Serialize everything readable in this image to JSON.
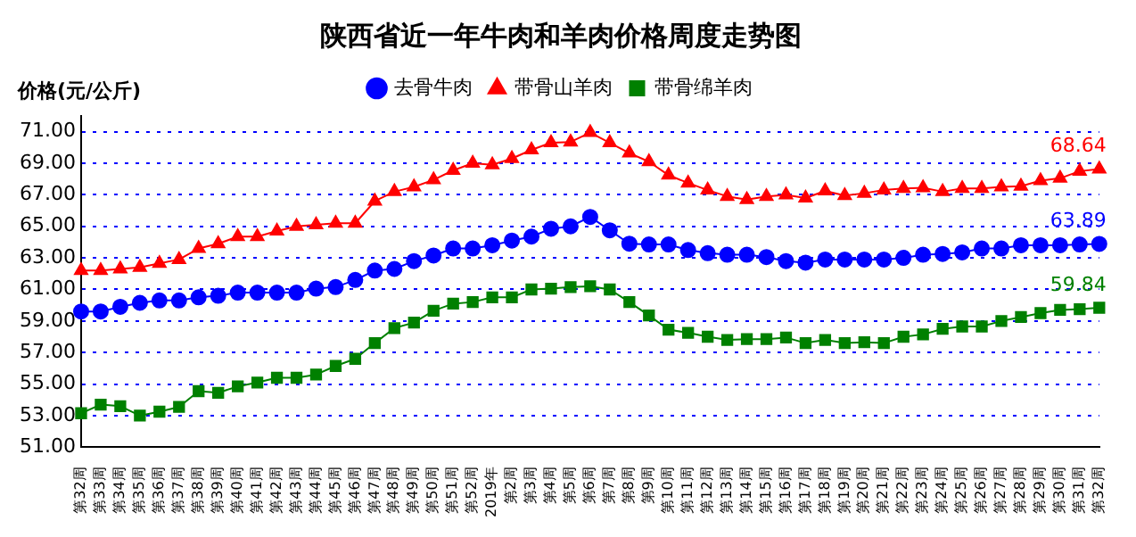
{
  "chart_data": {
    "type": "line",
    "title": "陕西省近一年牛肉和羊肉价格周度走势图",
    "ylabel": "价格(元/公斤)",
    "categories": [
      "第32周",
      "第33周",
      "第34周",
      "第35周",
      "第36周",
      "第37周",
      "第38周",
      "第39周",
      "第40周",
      "第41周",
      "第42周",
      "第43周",
      "第44周",
      "第45周",
      "第46周",
      "第47周",
      "第48周",
      "第49周",
      "第50周",
      "第51周",
      "第52周",
      "2019年",
      "第2周",
      "第3周",
      "第4周",
      "第5周",
      "第6周",
      "第7周",
      "第8周",
      "第9周",
      "第10周",
      "第11周",
      "第12周",
      "第13周",
      "第14周",
      "第15周",
      "第16周",
      "第17周",
      "第18周",
      "第19周",
      "第20周",
      "第21周",
      "第22周",
      "第23周",
      "第24周",
      "第25周",
      "第26周",
      "第27周",
      "第28周",
      "第29周",
      "第30周",
      "第31周",
      "第32周"
    ],
    "series": [
      {
        "name": "去骨牛肉",
        "color": "#0000ff",
        "marker": "circle",
        "values": [
          59.6,
          59.6,
          59.9,
          60.15,
          60.3,
          60.3,
          60.5,
          60.6,
          60.8,
          60.8,
          60.8,
          60.8,
          61.05,
          61.15,
          61.6,
          62.2,
          62.3,
          62.8,
          63.15,
          63.6,
          63.6,
          63.8,
          64.1,
          64.35,
          64.85,
          65.0,
          65.6,
          64.75,
          63.9,
          63.85,
          63.85,
          63.5,
          63.3,
          63.2,
          63.2,
          63.05,
          62.8,
          62.7,
          62.9,
          62.9,
          62.9,
          62.9,
          63.0,
          63.2,
          63.25,
          63.35,
          63.6,
          63.6,
          63.8,
          63.8,
          63.8,
          63.85,
          63.89
        ],
        "value_labels": [
          null,
          null,
          null,
          null,
          null,
          null,
          null,
          null,
          null,
          null,
          null,
          null,
          null,
          null,
          null,
          null,
          null,
          null,
          null,
          null,
          null,
          null,
          null,
          null,
          null,
          null,
          null,
          null,
          null,
          null,
          null,
          null,
          null,
          null,
          null,
          null,
          null,
          null,
          null,
          null,
          null,
          null,
          null,
          null,
          null,
          null,
          null,
          null,
          null,
          null,
          null,
          null,
          "63.89"
        ]
      },
      {
        "name": "带骨山羊肉",
        "color": "#ff0000",
        "marker": "triangle",
        "values": [
          62.2,
          62.2,
          62.3,
          62.4,
          62.65,
          62.9,
          63.6,
          63.9,
          64.35,
          64.35,
          64.7,
          65.0,
          65.1,
          65.2,
          65.2,
          66.6,
          67.2,
          67.5,
          67.95,
          68.55,
          69.0,
          68.9,
          69.3,
          69.85,
          70.3,
          70.35,
          70.95,
          70.3,
          69.65,
          69.1,
          68.25,
          67.75,
          67.3,
          66.9,
          66.7,
          66.9,
          67.0,
          66.8,
          67.25,
          66.95,
          67.1,
          67.3,
          67.4,
          67.45,
          67.2,
          67.4,
          67.4,
          67.5,
          67.55,
          67.9,
          68.05,
          68.5,
          68.64
        ],
        "value_labels": [
          null,
          null,
          null,
          null,
          null,
          null,
          null,
          null,
          null,
          null,
          null,
          null,
          null,
          null,
          null,
          null,
          null,
          null,
          null,
          null,
          null,
          null,
          null,
          null,
          null,
          null,
          null,
          null,
          null,
          null,
          null,
          null,
          null,
          null,
          null,
          null,
          null,
          null,
          null,
          null,
          null,
          null,
          null,
          null,
          null,
          null,
          null,
          null,
          null,
          null,
          null,
          null,
          "68.64"
        ]
      },
      {
        "name": "带骨绵羊肉",
        "color": "#008000",
        "marker": "square",
        "values": [
          53.15,
          53.7,
          53.6,
          53.0,
          53.25,
          53.55,
          54.55,
          54.45,
          54.85,
          55.1,
          55.4,
          55.4,
          55.6,
          56.15,
          56.6,
          57.6,
          58.55,
          58.9,
          59.65,
          60.1,
          60.2,
          60.5,
          60.5,
          61.0,
          61.05,
          61.15,
          61.2,
          61.0,
          60.2,
          59.35,
          58.45,
          58.25,
          58.0,
          57.8,
          57.85,
          57.85,
          57.95,
          57.6,
          57.8,
          57.6,
          57.65,
          57.6,
          58.0,
          58.15,
          58.5,
          58.65,
          58.65,
          59.0,
          59.25,
          59.5,
          59.7,
          59.75,
          59.84
        ],
        "value_labels": [
          null,
          null,
          null,
          null,
          null,
          null,
          null,
          null,
          null,
          null,
          null,
          null,
          null,
          null,
          null,
          null,
          null,
          null,
          null,
          null,
          null,
          null,
          null,
          null,
          null,
          null,
          null,
          null,
          null,
          null,
          null,
          null,
          null,
          null,
          null,
          null,
          null,
          null,
          null,
          null,
          null,
          null,
          null,
          null,
          null,
          null,
          null,
          null,
          null,
          null,
          null,
          null,
          "59.84"
        ]
      }
    ],
    "ylim": [
      51,
      72
    ],
    "yticks": [
      {
        "value": 51,
        "label": "51.00"
      },
      {
        "value": 53,
        "label": "53.00"
      },
      {
        "value": 55,
        "label": "55.00"
      },
      {
        "value": 57,
        "label": "57.00"
      },
      {
        "value": 59,
        "label": "59.00"
      },
      {
        "value": 61,
        "label": "61.00"
      },
      {
        "value": 63,
        "label": "63.00"
      },
      {
        "value": 65,
        "label": "65.00"
      },
      {
        "value": 67,
        "label": "67.00"
      },
      {
        "value": 69,
        "label": "69.00"
      },
      {
        "value": 71,
        "label": "71.00"
      }
    ],
    "grid": "y",
    "legend": "top"
  }
}
